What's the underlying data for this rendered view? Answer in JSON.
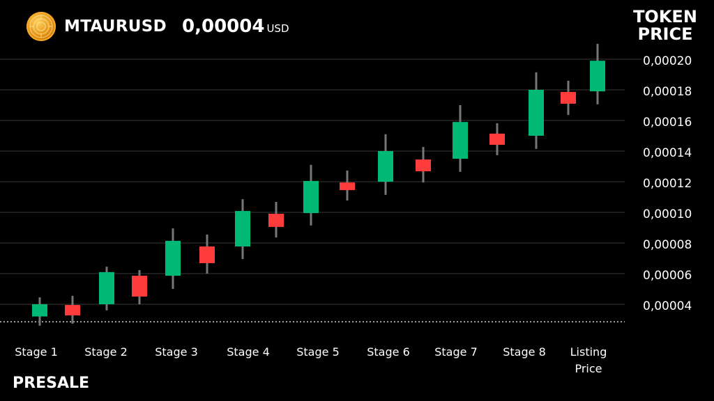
{
  "header": {
    "symbol": "MTAURUSD",
    "price": "0,00004",
    "unit": "USD",
    "logo_icon": "coin-logo-icon"
  },
  "footer": {
    "label": "PRESALE"
  },
  "colors": {
    "up": "#02b875",
    "down": "#ff3c3c",
    "wick": "#777777",
    "grid": "#2e2e2e",
    "background": "#000000"
  },
  "chart_data": {
    "type": "candlestick",
    "title": "",
    "ylabel": "TOKEN PRICE",
    "ylim": [
      2.8e-05,
      0.00021
    ],
    "yticks": [
      "0,00004",
      "0,00006",
      "0,00008",
      "0,00010",
      "0,00012",
      "0,00014",
      "0,00016",
      "0,00018",
      "0,00020"
    ],
    "ytick_values": [
      4e-05,
      6e-05,
      8e-05,
      0.0001,
      0.00012,
      0.00014,
      0.00016,
      0.00018,
      0.0002
    ],
    "reference_line": {
      "value": 2.85e-05,
      "style": "dotted"
    },
    "grid": true,
    "categories": [
      "Stage 1",
      "Stage 2",
      "Stage 3",
      "Stage 4",
      "Stage 5",
      "Stage 6",
      "Stage 7",
      "Stage 8",
      "Listing\nPrice"
    ],
    "candles": [
      {
        "open": 3.2e-05,
        "close": 4e-05,
        "high": 4.45e-05,
        "low": 2.6e-05
      },
      {
        "open": 3.95e-05,
        "close": 3.27e-05,
        "high": 4.55e-05,
        "low": 2.73e-05
      },
      {
        "open": 4e-05,
        "close": 6.1e-05,
        "high": 6.45e-05,
        "low": 3.6e-05
      },
      {
        "open": 5.86e-05,
        "close": 4.5e-05,
        "high": 6.23e-05,
        "low": 4e-05
      },
      {
        "open": 5.86e-05,
        "close": 8.14e-05,
        "high": 8.95e-05,
        "low": 5e-05
      },
      {
        "open": 7.77e-05,
        "close": 6.68e-05,
        "high": 8.55e-05,
        "low": 6e-05
      },
      {
        "open": 7.77e-05,
        "close": 0.0001009,
        "high": 0.0001086,
        "low": 6.95e-05
      },
      {
        "open": 9.91e-05,
        "close": 9.05e-05,
        "high": 0.0001068,
        "low": 8.36e-05
      },
      {
        "open": 9.95e-05,
        "close": 0.0001205,
        "high": 0.000131,
        "low": 9.14e-05
      },
      {
        "open": 0.0001195,
        "close": 0.0001145,
        "high": 0.0001273,
        "low": 0.0001077
      },
      {
        "open": 0.00012,
        "close": 0.00014,
        "high": 0.000151,
        "low": 0.0001114
      },
      {
        "open": 0.0001345,
        "close": 0.0001268,
        "high": 0.0001427,
        "low": 0.0001195
      },
      {
        "open": 0.000135,
        "close": 0.000159,
        "high": 0.00017,
        "low": 0.0001264
      },
      {
        "open": 0.0001514,
        "close": 0.0001441,
        "high": 0.0001582,
        "low": 0.0001373
      },
      {
        "open": 0.00015,
        "close": 0.00018,
        "high": 0.0001914,
        "low": 0.0001414
      },
      {
        "open": 0.0001786,
        "close": 0.0001709,
        "high": 0.0001859,
        "low": 0.0001636
      },
      {
        "open": 0.000179,
        "close": 0.000199,
        "high": 0.00021,
        "low": 0.0001705
      }
    ]
  }
}
